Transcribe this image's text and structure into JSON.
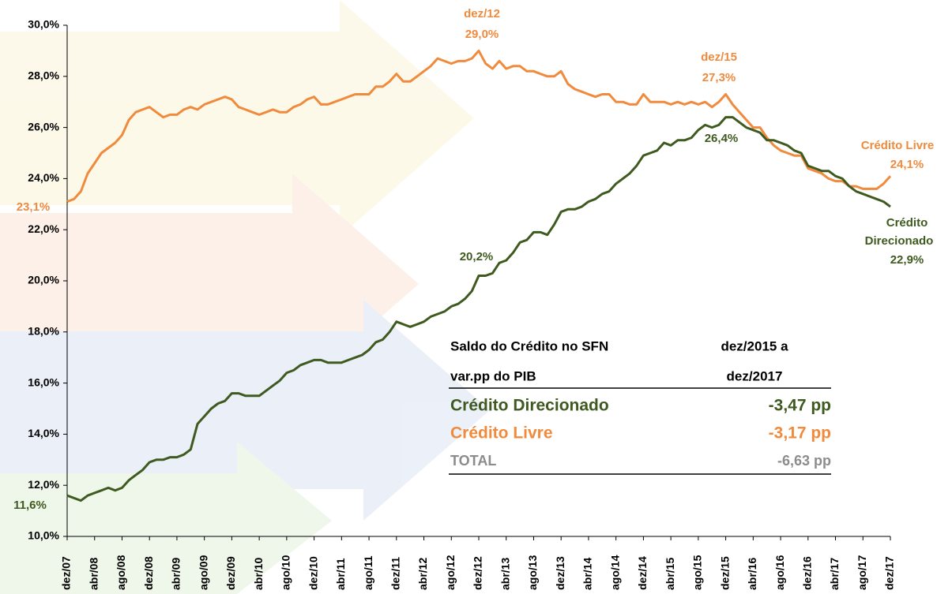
{
  "chart_data": {
    "type": "line",
    "categories": [
      "dez/07",
      null,
      null,
      null,
      "abr/08",
      null,
      null,
      null,
      "ago/08",
      null,
      null,
      null,
      "dez/08",
      null,
      null,
      null,
      "abr/09",
      null,
      null,
      null,
      "ago/09",
      null,
      null,
      null,
      "dez/09",
      null,
      null,
      null,
      "abr/10",
      null,
      null,
      null,
      "ago/10",
      null,
      null,
      null,
      "dez/10",
      null,
      null,
      null,
      "abr/11",
      null,
      null,
      null,
      "ago/11",
      null,
      null,
      null,
      "dez/11",
      null,
      null,
      null,
      "abr/12",
      null,
      null,
      null,
      "ago/12",
      null,
      null,
      null,
      "dez/12",
      null,
      null,
      null,
      "abr/13",
      null,
      null,
      null,
      "ago/13",
      null,
      null,
      null,
      "dez/13",
      null,
      null,
      null,
      "abr/14",
      null,
      null,
      null,
      "ago/14",
      null,
      null,
      null,
      "dez/14",
      null,
      null,
      null,
      "abr/15",
      null,
      null,
      null,
      "ago/15",
      null,
      null,
      null,
      "dez/15",
      null,
      null,
      null,
      "abr/16",
      null,
      null,
      null,
      "ago/16",
      null,
      null,
      null,
      "dez/16",
      null,
      null,
      null,
      "abr/17",
      null,
      null,
      null,
      "ago/17",
      null,
      null,
      null,
      "dez/17"
    ],
    "series": [
      {
        "color": "#f08a3c",
        "values": [
          23.1,
          23.2,
          23.5,
          24.2,
          24.6,
          25.0,
          25.2,
          25.4,
          25.7,
          26.3,
          26.6,
          26.7,
          26.8,
          26.6,
          26.4,
          26.5,
          26.5,
          26.7,
          26.8,
          26.7,
          26.9,
          27.0,
          27.1,
          27.2,
          27.1,
          26.8,
          26.7,
          26.6,
          26.5,
          26.6,
          26.7,
          26.6,
          26.6,
          26.8,
          26.9,
          27.1,
          27.2,
          26.9,
          26.9,
          27.0,
          27.1,
          27.2,
          27.3,
          27.3,
          27.3,
          27.6,
          27.6,
          27.8,
          28.1,
          27.8,
          27.8,
          28.0,
          28.2,
          28.4,
          28.7,
          28.6,
          28.5,
          28.6,
          28.6,
          28.7,
          29.0,
          28.5,
          28.3,
          28.6,
          28.3,
          28.4,
          28.4,
          28.2,
          28.2,
          28.1,
          28.0,
          28.0,
          28.2,
          27.7,
          27.5,
          27.4,
          27.3,
          27.2,
          27.3,
          27.3,
          27.0,
          27.0,
          26.9,
          26.9,
          27.3,
          27.0,
          27.0,
          27.0,
          26.9,
          27.0,
          26.9,
          27.0,
          26.9,
          27.0,
          26.8,
          27.0,
          27.3,
          26.9,
          26.6,
          26.3,
          26.0,
          26.0,
          25.6,
          25.3,
          25.1,
          25.0,
          24.9,
          24.9,
          24.4,
          24.3,
          24.2,
          24.0,
          23.9,
          23.9,
          23.7,
          23.7,
          23.6,
          23.6,
          23.6,
          23.8,
          24.1
        ]
      },
      {
        "color": "#3f5a1f",
        "values": [
          11.6,
          11.5,
          11.4,
          11.6,
          11.7,
          11.8,
          11.9,
          11.8,
          11.9,
          12.2,
          12.4,
          12.6,
          12.9,
          13.0,
          13.0,
          13.1,
          13.1,
          13.2,
          13.4,
          14.4,
          14.7,
          15.0,
          15.2,
          15.3,
          15.6,
          15.6,
          15.5,
          15.5,
          15.5,
          15.7,
          15.9,
          16.1,
          16.4,
          16.5,
          16.7,
          16.8,
          16.9,
          16.9,
          16.8,
          16.8,
          16.8,
          16.9,
          17.0,
          17.1,
          17.3,
          17.6,
          17.7,
          18.0,
          18.4,
          18.3,
          18.2,
          18.3,
          18.4,
          18.6,
          18.7,
          18.8,
          19.0,
          19.1,
          19.3,
          19.6,
          20.2,
          20.2,
          20.3,
          20.7,
          20.8,
          21.1,
          21.5,
          21.6,
          21.9,
          21.9,
          21.8,
          22.2,
          22.7,
          22.8,
          22.8,
          22.9,
          23.1,
          23.2,
          23.4,
          23.5,
          23.8,
          24.0,
          24.2,
          24.5,
          24.9,
          25.0,
          25.1,
          25.4,
          25.3,
          25.5,
          25.5,
          25.6,
          25.9,
          26.1,
          26.0,
          26.1,
          26.4,
          26.4,
          26.2,
          26.0,
          25.9,
          25.8,
          25.5,
          25.5,
          25.4,
          25.3,
          25.1,
          25.0,
          24.5,
          24.4,
          24.3,
          24.3,
          24.1,
          24.0,
          23.7,
          23.5,
          23.4,
          23.3,
          23.2,
          23.1,
          22.9
        ]
      }
    ],
    "ylim": [
      10,
      30
    ],
    "yticks": [
      {
        "value": 10,
        "label": "10,0%"
      },
      {
        "value": 12,
        "label": "12,0%"
      },
      {
        "value": 14,
        "label": "14,0%"
      },
      {
        "value": 16,
        "label": "16,0%"
      },
      {
        "value": 18,
        "label": "18,0%"
      },
      {
        "value": 20,
        "label": "20,0%"
      },
      {
        "value": 22,
        "label": "22,0%"
      },
      {
        "value": 24,
        "label": "24,0%"
      },
      {
        "value": 26,
        "label": "26,0%"
      },
      {
        "value": 28,
        "label": "28,0%"
      },
      {
        "value": 30,
        "label": "30,0%"
      }
    ],
    "grid": false,
    "annotations": [
      "dez/12",
      "29,0%",
      "dez/15",
      "27,3%",
      "Crédito Livre",
      "24,1%",
      "23,1%",
      "11,6%",
      "20,2%",
      "26,4%",
      "Crédito",
      "Direcionado",
      "22,9%"
    ]
  },
  "table": {
    "header": [
      [
        "Saldo do Crédito no SFN",
        "dez/2015 a"
      ],
      [
        "var.pp do PIB",
        "dez/2017"
      ]
    ],
    "rows": [
      [
        "Crédito Direcionado",
        "-3,47 pp"
      ],
      [
        "Crédito Livre",
        "-3,17 pp"
      ],
      [
        "TOTAL",
        "-6,63 pp"
      ]
    ]
  }
}
